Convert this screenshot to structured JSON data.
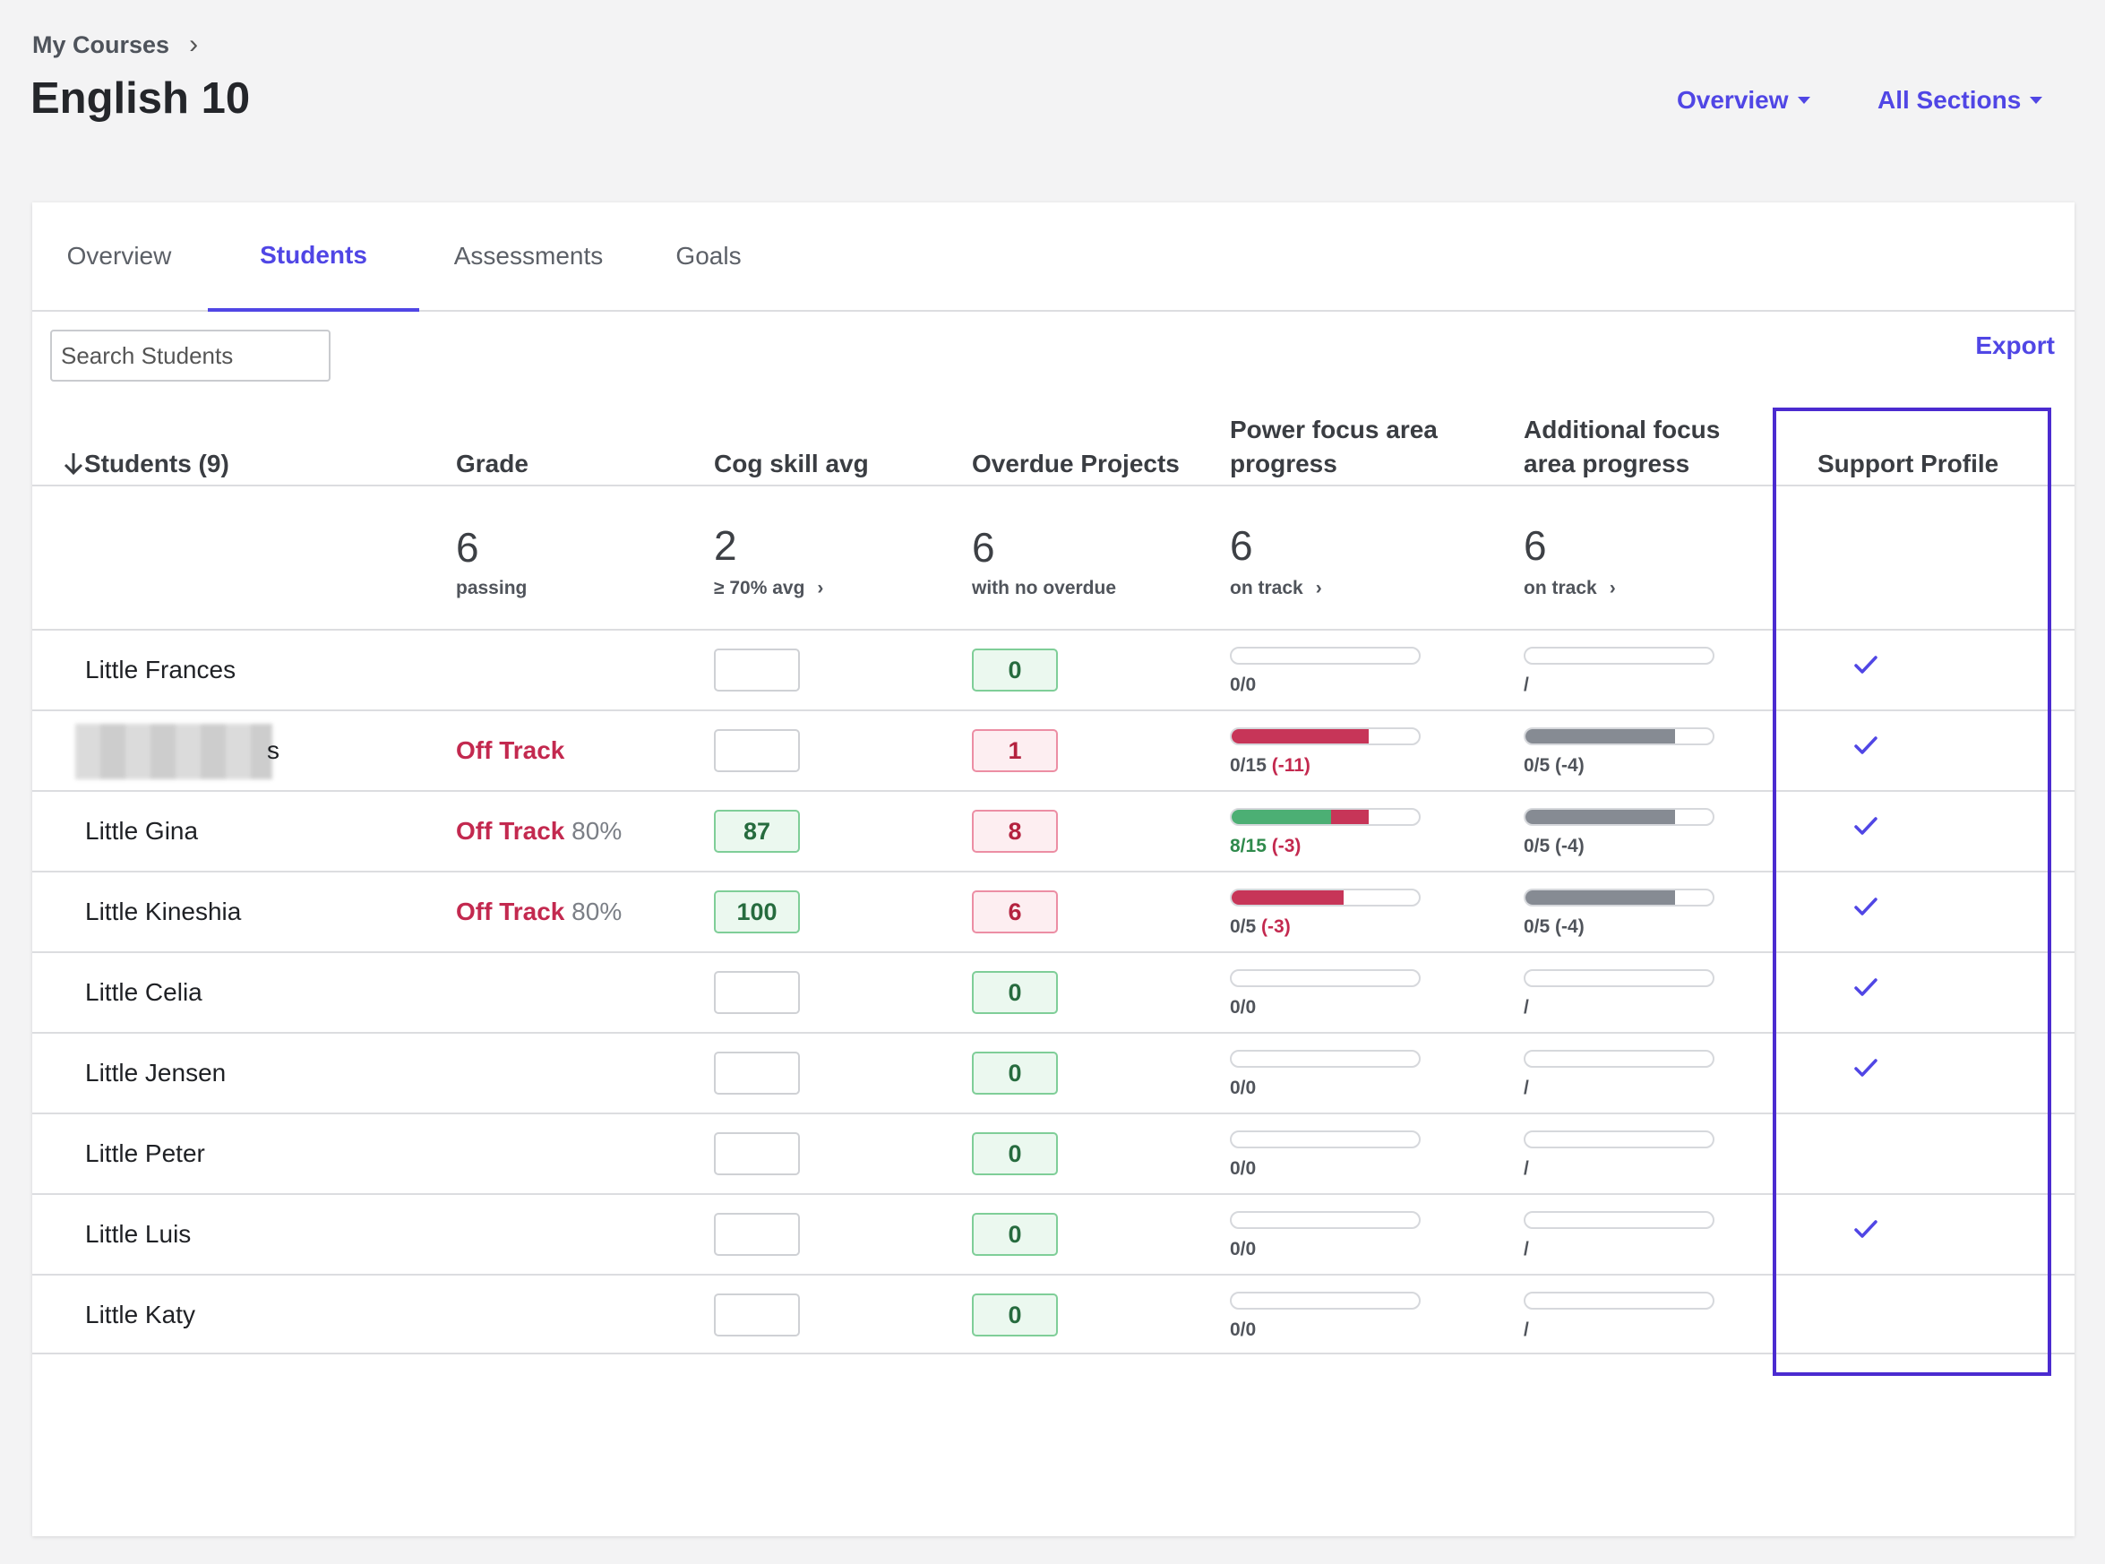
{
  "breadcrumb": {
    "label": "My Courses"
  },
  "page": {
    "title": "English 10"
  },
  "header": {
    "view_dropdown": "Overview",
    "section_dropdown": "All Sections"
  },
  "tabs": [
    "Overview",
    "Students",
    "Assessments",
    "Goals"
  ],
  "active_tab": "Students",
  "search": {
    "placeholder": "Search Students",
    "value": ""
  },
  "export_label": "Export",
  "columns": {
    "students": "Students (9)",
    "grade": "Grade",
    "cog": "Cog skill avg",
    "overdue": "Overdue Projects",
    "power_line1": "Power focus area",
    "power_line2": "progress",
    "additional_line1": "Additional focus",
    "additional_line2": "area progress",
    "support": "Support Profile"
  },
  "summary": {
    "grade": {
      "value": "6",
      "label": "passing"
    },
    "cog": {
      "value": "2",
      "label": "≥ 70% avg"
    },
    "overdue": {
      "value": "6",
      "label": "with no overdue"
    },
    "power": {
      "value": "6",
      "label": "on track"
    },
    "additional": {
      "value": "6",
      "label": "on track"
    }
  },
  "rows": [
    {
      "name": "Little Frances",
      "grade_status": "",
      "grade_pct": "",
      "cog": "",
      "overdue": "0",
      "power_label": "0/0",
      "power_delta": "",
      "power_green": 0,
      "power_red": 0,
      "add_label": "/",
      "add_delta": "",
      "add_fill": 0,
      "support": true
    },
    {
      "name": "s",
      "grade_status": "Off Track",
      "grade_pct": "",
      "cog": "",
      "overdue": "1",
      "power_label": "0/15",
      "power_delta": "(-11)",
      "power_green": 0,
      "power_red": 73,
      "add_label": "0/5",
      "add_delta": "(-4)",
      "add_fill": 80,
      "support": true
    },
    {
      "name": "Little Gina",
      "grade_status": "Off Track",
      "grade_pct": "80%",
      "cog": "87",
      "overdue": "8",
      "power_label": "8/15",
      "power_delta": "(-3)",
      "power_green": 53,
      "power_red": 20,
      "add_label": "0/5",
      "add_delta": "(-4)",
      "add_fill": 80,
      "support": true
    },
    {
      "name": "Little Kineshia",
      "grade_status": "Off Track",
      "grade_pct": "80%",
      "cog": "100",
      "overdue": "6",
      "power_label": "0/5",
      "power_delta": "(-3)",
      "power_green": 0,
      "power_red": 60,
      "add_label": "0/5",
      "add_delta": "(-4)",
      "add_fill": 80,
      "support": true
    },
    {
      "name": "Little Celia",
      "grade_status": "",
      "grade_pct": "",
      "cog": "",
      "overdue": "0",
      "power_label": "0/0",
      "power_delta": "",
      "power_green": 0,
      "power_red": 0,
      "add_label": "/",
      "add_delta": "",
      "add_fill": 0,
      "support": true
    },
    {
      "name": "Little Jensen",
      "grade_status": "",
      "grade_pct": "",
      "cog": "",
      "overdue": "0",
      "power_label": "0/0",
      "power_delta": "",
      "power_green": 0,
      "power_red": 0,
      "add_label": "/",
      "add_delta": "",
      "add_fill": 0,
      "support": true
    },
    {
      "name": "Little Peter",
      "grade_status": "",
      "grade_pct": "",
      "cog": "",
      "overdue": "0",
      "power_label": "0/0",
      "power_delta": "",
      "power_green": 0,
      "power_red": 0,
      "add_label": "/",
      "add_delta": "",
      "add_fill": 0,
      "support": false
    },
    {
      "name": "Little Luis",
      "grade_status": "",
      "grade_pct": "",
      "cog": "",
      "overdue": "0",
      "power_label": "0/0",
      "power_delta": "",
      "power_green": 0,
      "power_red": 0,
      "add_label": "/",
      "add_delta": "",
      "add_fill": 0,
      "support": true
    },
    {
      "name": "Little Katy",
      "grade_status": "",
      "grade_pct": "",
      "cog": "",
      "overdue": "0",
      "power_label": "0/0",
      "power_delta": "",
      "power_green": 0,
      "power_red": 0,
      "add_label": "/",
      "add_delta": "",
      "add_fill": 0,
      "support": false
    }
  ],
  "colors": {
    "accent": "#5046e5",
    "off_track": "#c3294f",
    "progress_green": "#4caf74",
    "progress_red": "#c73558",
    "progress_gray": "#868b93",
    "highlight": "#4b2bd0"
  },
  "icons": {
    "sort": "arrow-down-icon",
    "support": "check-icon",
    "breadcrumb": "chevron-right-icon",
    "dropdown": "caret-down-icon"
  }
}
